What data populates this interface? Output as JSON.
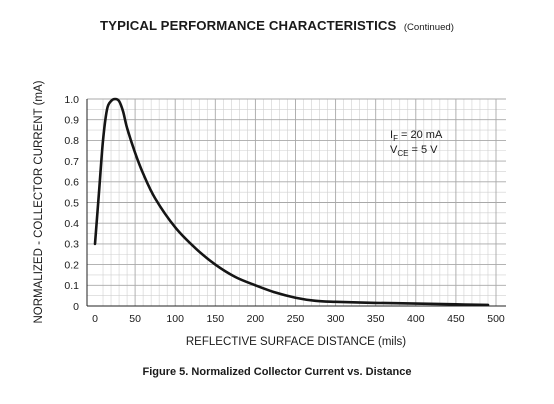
{
  "header": {
    "title": "TYPICAL PERFORMANCE CHARACTERISTICS",
    "subtitle": "(Continued)"
  },
  "chart_data": {
    "type": "line",
    "xlabel": "REFLECTIVE SURFACE DISTANCE (mils)",
    "ylabel": "NORMALIZED - COLLECTOR CURRENT (mA)",
    "xlim": [
      0,
      500
    ],
    "ylim": [
      0,
      1.0
    ],
    "xticks": [
      "0",
      "50",
      "100",
      "150",
      "200",
      "250",
      "300",
      "350",
      "400",
      "450",
      "500"
    ],
    "yticks": [
      "0",
      "0.1",
      "0.2",
      "0.3",
      "0.4",
      "0.5",
      "0.6",
      "0.7",
      "0.8",
      "0.9",
      "1.0"
    ],
    "grid": true,
    "annotations": [
      {
        "base": "I",
        "sub": "F",
        "rest": " = 20 mA"
      },
      {
        "base": "V",
        "sub": "CE",
        "rest": " = 5 V"
      }
    ],
    "series": [
      {
        "x": [
          0,
          5,
          10,
          15,
          20,
          25,
          30,
          35,
          40,
          50,
          60,
          75,
          100,
          125,
          150,
          175,
          200,
          225,
          250,
          275,
          300,
          350,
          400,
          450,
          490
        ],
        "y": [
          0.3,
          0.55,
          0.8,
          0.95,
          0.99,
          1.0,
          0.99,
          0.94,
          0.86,
          0.74,
          0.64,
          0.52,
          0.38,
          0.28,
          0.2,
          0.14,
          0.1,
          0.065,
          0.04,
          0.025,
          0.02,
          0.015,
          0.012,
          0.008,
          0.005
        ]
      }
    ]
  },
  "caption": "Figure 5. Normalized Collector Current vs. Distance"
}
